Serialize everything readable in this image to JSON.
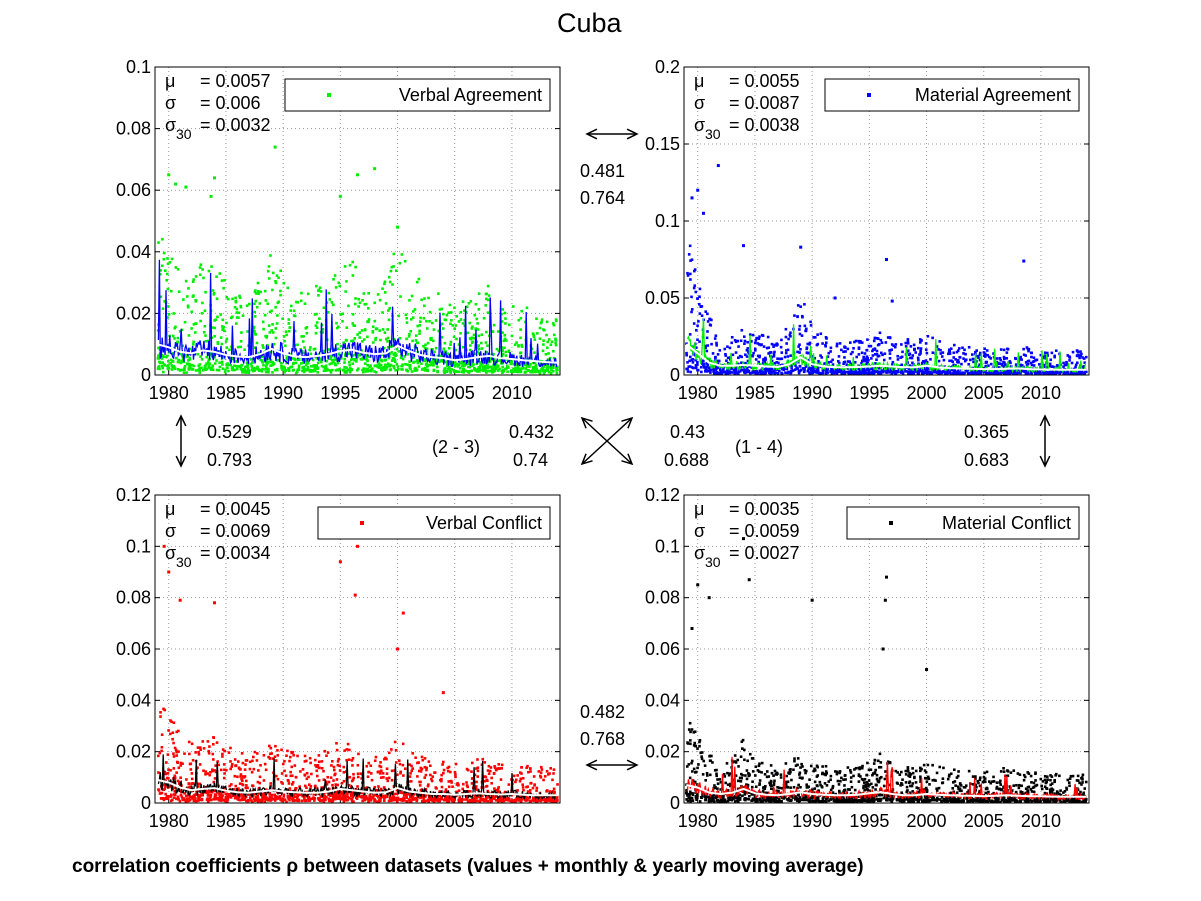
{
  "title": "Cuba",
  "caption": "correlation coefficients ρ between datasets (values + monthly & yearly moving average)",
  "colors": {
    "verbal_agreement": "#00ee00",
    "material_agreement": "#0000ff",
    "verbal_conflict": "#ff0000",
    "material_conflict": "#000000",
    "moving_avg_line": "#ffffff",
    "grid": "#999999"
  },
  "correlations": {
    "top": {
      "r1": "0.481",
      "r2": "0.764"
    },
    "bottom": {
      "r1": "0.482",
      "r2": "0.768"
    },
    "left": {
      "r1": "0.529",
      "r2": "0.793"
    },
    "right": {
      "r1": "0.365",
      "r2": "0.683"
    },
    "diag_23": {
      "label": "(2 - 3)",
      "r1": "0.432",
      "r2": "0.74"
    },
    "diag_14": {
      "label": "(1 - 4)",
      "r1": "0.43",
      "r2": "0.688"
    }
  },
  "chart_data": [
    {
      "type": "scatter",
      "legend": "Verbal Agreement",
      "color": "#00ee00",
      "avg_color": "#0000ff",
      "xlim": [
        1978.8,
        2014.2
      ],
      "ylim": [
        0,
        0.1
      ],
      "xticks": [
        "1980",
        "1985",
        "1990",
        "1995",
        "2000",
        "2005",
        "2010"
      ],
      "yticks": [
        "0",
        "0.02",
        "0.04",
        "0.06",
        "0.08",
        "0.1"
      ],
      "grid": true,
      "legend_position": "top-right",
      "stats": {
        "mu": "= 0.0057",
        "sigma": "= 0.006",
        "sigma30": "= 0.0032"
      },
      "yearly_avg": {
        "x": [
          1979,
          1980,
          1981,
          1982,
          1983,
          1984,
          1985,
          1986,
          1987,
          1988,
          1989,
          1990,
          1991,
          1992,
          1993,
          1994,
          1995,
          1996,
          1997,
          1998,
          1999,
          2000,
          2001,
          2002,
          2003,
          2004,
          2005,
          2006,
          2007,
          2008,
          2009,
          2010,
          2011,
          2012,
          2013,
          2014
        ],
        "y": [
          0.01,
          0.009,
          0.0075,
          0.007,
          0.008,
          0.0075,
          0.0065,
          0.006,
          0.0058,
          0.0068,
          0.0085,
          0.007,
          0.006,
          0.0058,
          0.0062,
          0.0068,
          0.0078,
          0.0082,
          0.0072,
          0.0068,
          0.007,
          0.0095,
          0.0078,
          0.0065,
          0.0058,
          0.0055,
          0.0048,
          0.0052,
          0.0058,
          0.0062,
          0.0055,
          0.0052,
          0.0048,
          0.0045,
          0.0042,
          0.004
        ]
      }
    },
    {
      "type": "scatter",
      "legend": "Material Agreement",
      "color": "#0000ff",
      "avg_color": "#00ee00",
      "xlim": [
        1978.8,
        2014.2
      ],
      "ylim": [
        0,
        0.2
      ],
      "xticks": [
        "1980",
        "1985",
        "1990",
        "1995",
        "2000",
        "2005",
        "2010"
      ],
      "yticks": [
        "0",
        "0.05",
        "0.1",
        "0.15",
        "0.2"
      ],
      "grid": true,
      "legend_position": "top-right",
      "stats": {
        "mu": "= 0.0055",
        "sigma": "= 0.0087",
        "sigma30": "= 0.0038"
      },
      "yearly_avg": {
        "x": [
          1979,
          1980,
          1981,
          1982,
          1983,
          1984,
          1985,
          1986,
          1987,
          1988,
          1989,
          1990,
          1991,
          1992,
          1993,
          1994,
          1995,
          1996,
          1997,
          1998,
          1999,
          2000,
          2001,
          2002,
          2003,
          2004,
          2005,
          2006,
          2007,
          2008,
          2009,
          2010,
          2011,
          2012,
          2013,
          2014
        ],
        "y": [
          0.02,
          0.014,
          0.008,
          0.006,
          0.006,
          0.0065,
          0.006,
          0.0055,
          0.0052,
          0.007,
          0.0115,
          0.007,
          0.0055,
          0.005,
          0.005,
          0.0052,
          0.0055,
          0.006,
          0.0055,
          0.005,
          0.005,
          0.006,
          0.005,
          0.0045,
          0.0042,
          0.004,
          0.0038,
          0.0038,
          0.004,
          0.0042,
          0.0038,
          0.0036,
          0.0035,
          0.0034,
          0.0034,
          0.0034
        ]
      }
    },
    {
      "type": "scatter",
      "legend": "Verbal Conflict",
      "color": "#ff0000",
      "avg_color": "#000000",
      "xlim": [
        1978.8,
        2014.2
      ],
      "ylim": [
        0,
        0.12
      ],
      "xticks": [
        "1980",
        "1985",
        "1990",
        "1995",
        "2000",
        "2005",
        "2010"
      ],
      "yticks": [
        "0",
        "0.02",
        "0.04",
        "0.06",
        "0.08",
        "0.1",
        "0.12"
      ],
      "grid": true,
      "legend_position": "top-right",
      "stats": {
        "mu": "= 0.0045",
        "sigma": "= 0.0069",
        "sigma30": "= 0.0034"
      },
      "yearly_avg": {
        "x": [
          1979,
          1980,
          1981,
          1982,
          1983,
          1984,
          1985,
          1986,
          1987,
          1988,
          1989,
          1990,
          1991,
          1992,
          1993,
          1994,
          1995,
          1996,
          1997,
          1998,
          1999,
          2000,
          2001,
          2002,
          2003,
          2004,
          2005,
          2006,
          2007,
          2008,
          2009,
          2010,
          2011,
          2012,
          2013,
          2014
        ],
        "y": [
          0.009,
          0.008,
          0.006,
          0.005,
          0.0055,
          0.0058,
          0.0048,
          0.0042,
          0.004,
          0.0045,
          0.005,
          0.0045,
          0.0042,
          0.004,
          0.004,
          0.0045,
          0.0055,
          0.005,
          0.0045,
          0.004,
          0.0042,
          0.0058,
          0.0045,
          0.004,
          0.0035,
          0.0035,
          0.0032,
          0.0035,
          0.0038,
          0.0035,
          0.0033,
          0.0035,
          0.0032,
          0.003,
          0.003,
          0.003
        ]
      }
    },
    {
      "type": "scatter",
      "legend": "Material Conflict",
      "color": "#000000",
      "avg_color": "#ff0000",
      "xlim": [
        1978.8,
        2014.2
      ],
      "ylim": [
        0,
        0.12
      ],
      "xticks": [
        "1980",
        "1985",
        "1990",
        "1995",
        "2000",
        "2005",
        "2010"
      ],
      "yticks": [
        "0",
        "0.02",
        "0.04",
        "0.06",
        "0.08",
        "0.1",
        "0.12"
      ],
      "grid": true,
      "legend_position": "top-right",
      "stats": {
        "mu": "= 0.0035",
        "sigma": "= 0.0059",
        "sigma30": "= 0.0027"
      },
      "yearly_avg": {
        "x": [
          1979,
          1980,
          1981,
          1982,
          1983,
          1984,
          1985,
          1986,
          1987,
          1988,
          1989,
          1990,
          1991,
          1992,
          1993,
          1994,
          1995,
          1996,
          1997,
          1998,
          1999,
          2000,
          2001,
          2002,
          2003,
          2004,
          2005,
          2006,
          2007,
          2008,
          2009,
          2010,
          2011,
          2012,
          2013,
          2014
        ],
        "y": [
          0.007,
          0.006,
          0.004,
          0.0035,
          0.004,
          0.0055,
          0.0038,
          0.0032,
          0.003,
          0.0035,
          0.0042,
          0.0035,
          0.0032,
          0.003,
          0.003,
          0.0032,
          0.0038,
          0.0042,
          0.0035,
          0.003,
          0.003,
          0.0035,
          0.0032,
          0.003,
          0.0028,
          0.0028,
          0.0026,
          0.0028,
          0.003,
          0.0028,
          0.0026,
          0.0026,
          0.0025,
          0.0024,
          0.0024,
          0.0024
        ]
      }
    }
  ]
}
